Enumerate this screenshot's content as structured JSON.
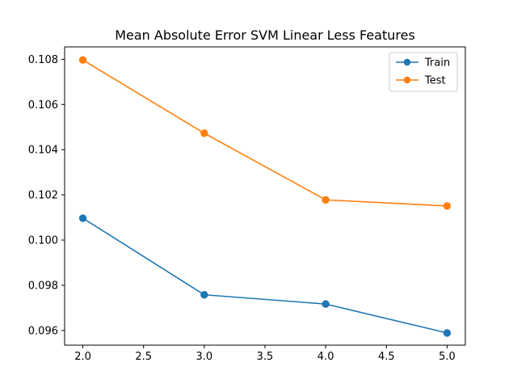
{
  "chart_data": {
    "type": "line",
    "title": "Mean Absolute Error SVM Linear Less Features",
    "xlabel": "",
    "ylabel": "",
    "x": [
      2.0,
      3.0,
      4.0,
      5.0
    ],
    "xlim": [
      1.85,
      5.15
    ],
    "ylim": [
      0.09535,
      0.10855
    ],
    "xticks": [
      "2.0",
      "2.5",
      "3.0",
      "3.5",
      "4.0",
      "4.5",
      "5.0"
    ],
    "yticks": [
      "0.096",
      "0.098",
      "0.100",
      "0.102",
      "0.104",
      "0.106",
      "0.108"
    ],
    "grid": false,
    "legend_position": "top-right",
    "series": [
      {
        "name": "Train",
        "color": "#1f77b4",
        "marker": "circle",
        "values": [
          0.10097,
          0.09758,
          0.09717,
          0.09589
        ]
      },
      {
        "name": "Test",
        "color": "#ff7f0e",
        "marker": "circle",
        "values": [
          0.10797,
          0.10473,
          0.10178,
          0.10151
        ]
      }
    ]
  }
}
